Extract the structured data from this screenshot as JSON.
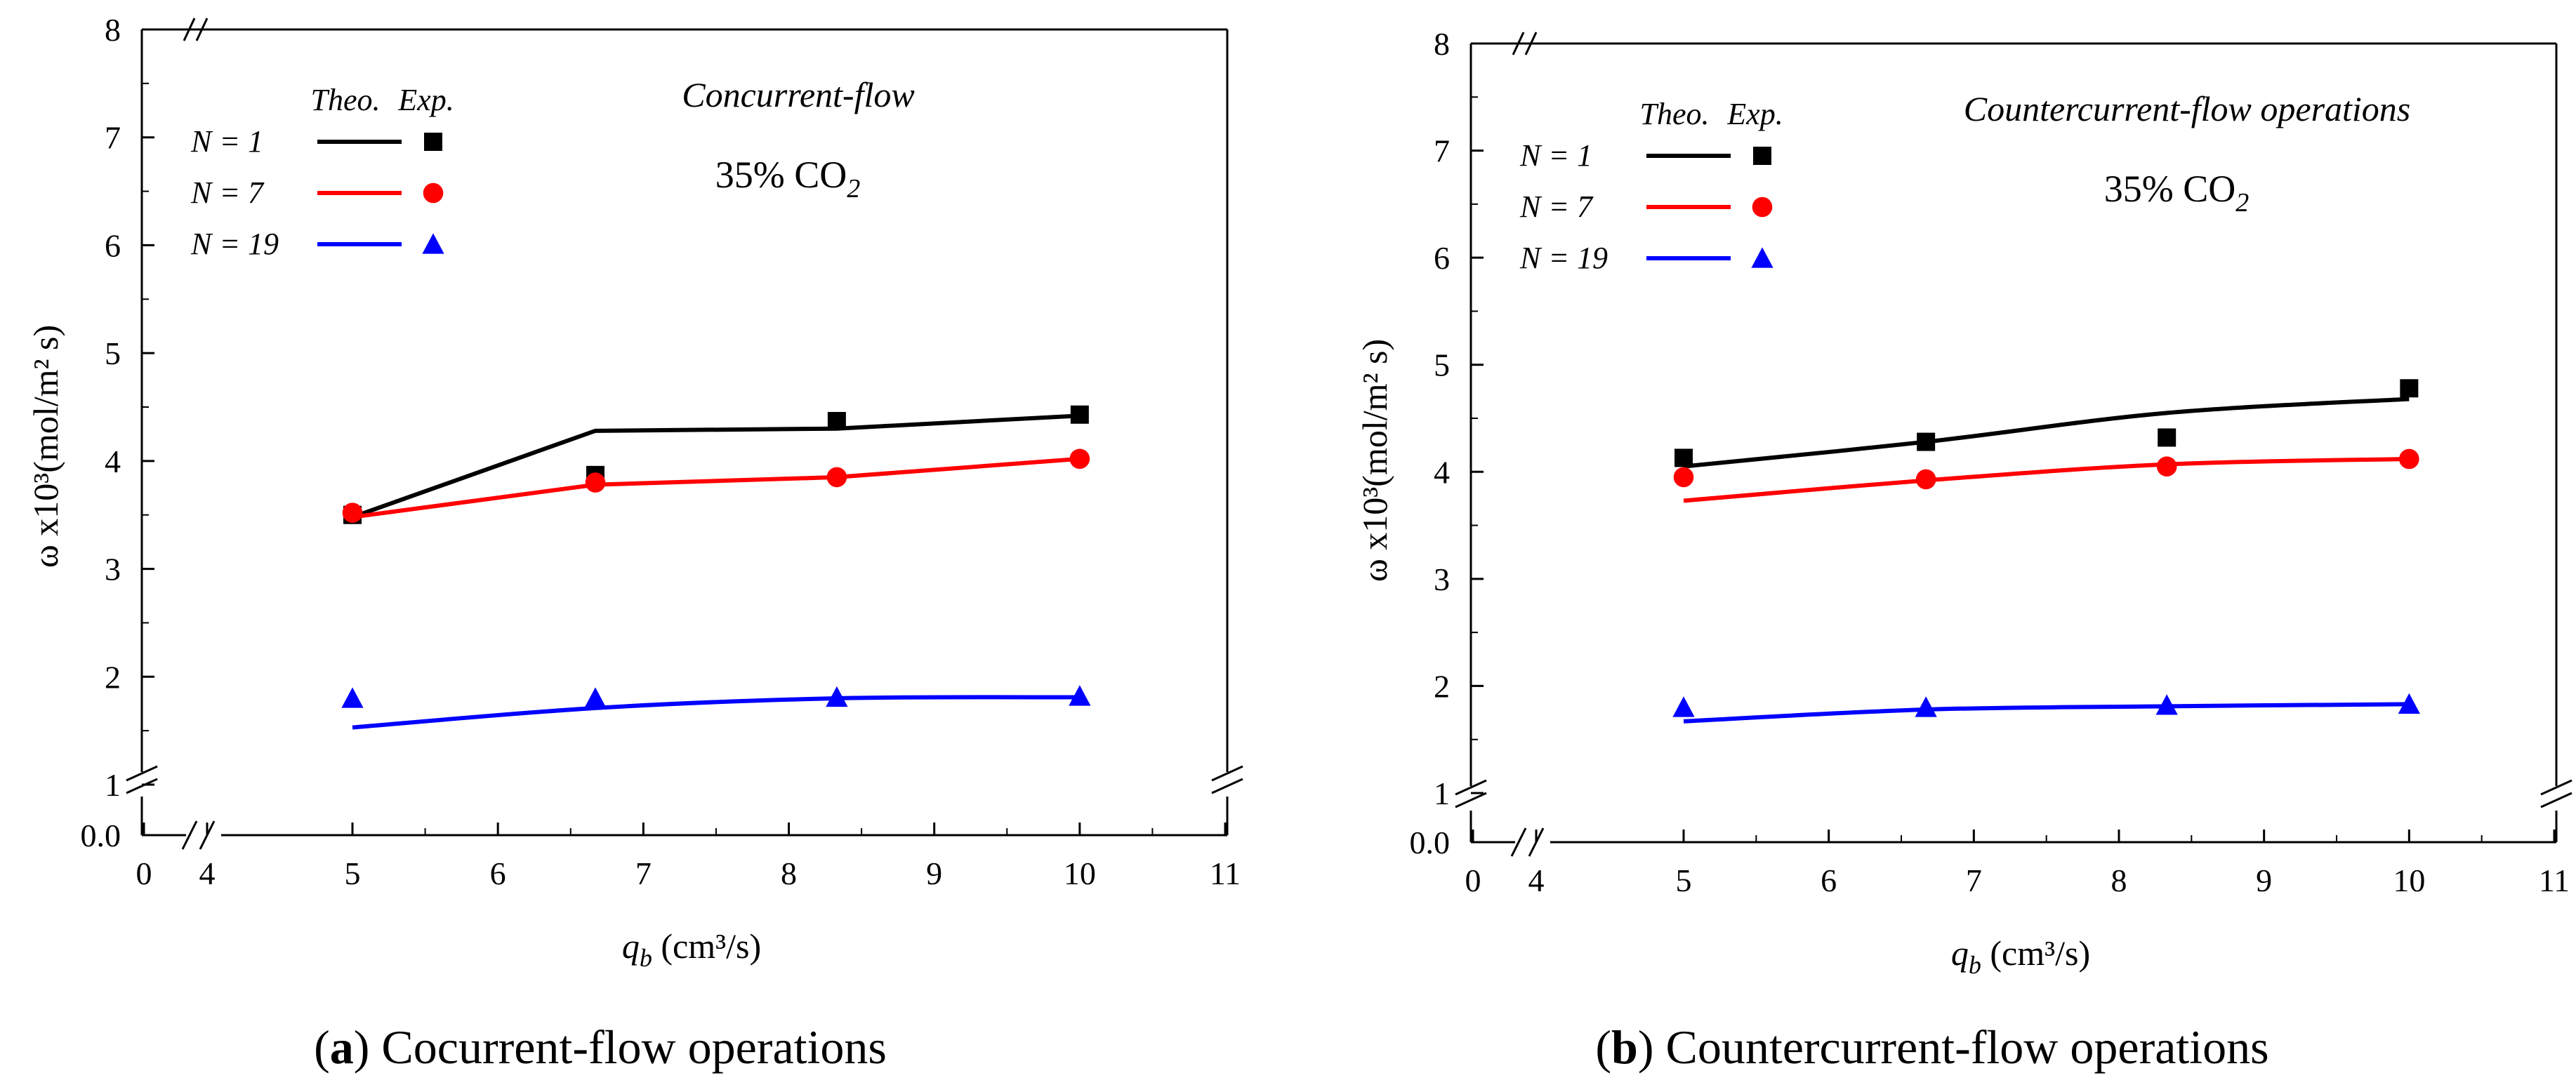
{
  "chart_data": [
    {
      "id": "a",
      "type": "line",
      "title": "",
      "xlabel": "q_b (cm³/s)",
      "ylabel": "ω x10³(mol/m² s)",
      "xlim": [
        0,
        11
      ],
      "ylim": [
        0,
        8
      ],
      "axis_break": {
        "x": [
          0,
          4
        ],
        "y": [
          0,
          1
        ]
      },
      "x_ticks": [
        "0",
        "4",
        "5",
        "6",
        "7",
        "8",
        "9",
        "10",
        "11"
      ],
      "y_ticks": [
        "0.0",
        "1",
        "2",
        "3",
        "4",
        "5",
        "6",
        "7",
        "8"
      ],
      "annotation_flow": "Concurrent-flow",
      "annotation_co2": "35% CO",
      "annotation_co2_sub": "2",
      "legend_header_theo": "Theo.",
      "legend_header_exp": "Exp.",
      "caption_letter": "a",
      "caption_text": "Cocurrent-flow operations",
      "series": [
        {
          "name": "N = 1",
          "color": "#000000",
          "marker": "square",
          "theo_x": [
            5,
            6.67,
            8.33,
            10
          ],
          "theo_y": [
            3.48,
            4.28,
            4.3,
            4.42
          ],
          "exp_x": [
            5,
            6.67,
            8.33,
            10
          ],
          "exp_y": [
            3.5,
            3.87,
            4.37,
            4.43
          ]
        },
        {
          "name": "N = 7",
          "color": "#ff0000",
          "marker": "circle",
          "theo_x": [
            5,
            6.67,
            8.33,
            10
          ],
          "theo_y": [
            3.48,
            3.78,
            3.85,
            4.02
          ],
          "exp_x": [
            5,
            6.67,
            8.33,
            10
          ],
          "exp_y": [
            3.52,
            3.8,
            3.85,
            4.02
          ]
        },
        {
          "name": "N = 19",
          "color": "#0000ff",
          "marker": "triangle",
          "theo_x": [
            5,
            6.67,
            8.33,
            10
          ],
          "theo_y": [
            1.53,
            1.71,
            1.8,
            1.81
          ],
          "exp_x": [
            5,
            6.67,
            8.33,
            10
          ],
          "exp_y": [
            1.8,
            1.8,
            1.81,
            1.82
          ]
        }
      ]
    },
    {
      "id": "b",
      "type": "line",
      "title": "",
      "xlabel": "q_b (cm³/s)",
      "ylabel": "ω x10³(mol/m² s)",
      "xlim": [
        0,
        11
      ],
      "ylim": [
        0,
        8
      ],
      "axis_break": {
        "x": [
          0,
          4
        ],
        "y": [
          0,
          1
        ]
      },
      "x_ticks": [
        "0",
        "4",
        "5",
        "6",
        "7",
        "8",
        "9",
        "10",
        "11"
      ],
      "y_ticks": [
        "0.0",
        "1",
        "2",
        "3",
        "4",
        "5",
        "6",
        "7",
        "8"
      ],
      "annotation_flow": "Countercurrent-flow operations",
      "annotation_co2": "35% CO",
      "annotation_co2_sub": "2",
      "legend_header_theo": "Theo.",
      "legend_header_exp": "Exp.",
      "caption_letter": "b",
      "caption_text": "Countercurrent-flow operations",
      "series": [
        {
          "name": "N = 1",
          "color": "#000000",
          "marker": "square",
          "theo_x": [
            5,
            6.67,
            8.33,
            10
          ],
          "theo_y": [
            4.05,
            4.28,
            4.55,
            4.68
          ],
          "exp_x": [
            5,
            6.67,
            8.33,
            10
          ],
          "exp_y": [
            4.13,
            4.28,
            4.32,
            4.78
          ]
        },
        {
          "name": "N = 7",
          "color": "#ff0000",
          "marker": "circle",
          "theo_x": [
            5,
            6.67,
            8.33,
            10
          ],
          "theo_y": [
            3.73,
            3.92,
            4.07,
            4.12
          ],
          "exp_x": [
            5,
            6.67,
            8.33,
            10
          ],
          "exp_y": [
            3.95,
            3.93,
            4.05,
            4.12
          ]
        },
        {
          "name": "N = 19",
          "color": "#0000ff",
          "marker": "triangle",
          "theo_x": [
            5,
            6.67,
            8.33,
            10
          ],
          "theo_y": [
            1.67,
            1.78,
            1.81,
            1.83
          ],
          "exp_x": [
            5,
            6.67,
            8.33,
            10
          ],
          "exp_y": [
            1.8,
            1.8,
            1.82,
            1.83
          ]
        }
      ]
    }
  ]
}
